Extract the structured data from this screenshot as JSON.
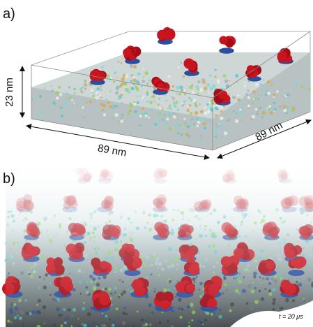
{
  "panel_a": {
    "label": "a)",
    "height_label": "23 nm",
    "width_label": "89 nm",
    "depth_label": "89 nm"
  },
  "panel_b": {
    "label": "b)",
    "time_label": "t = 20 μs"
  }
}
